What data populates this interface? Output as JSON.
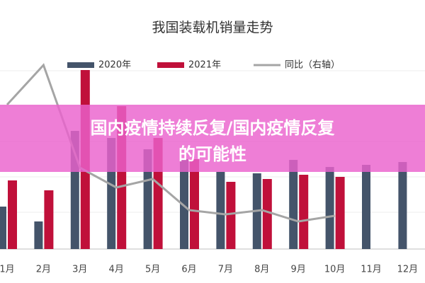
{
  "chart_data": {
    "type": "bar",
    "title": "我国装载机销量走势",
    "categories": [
      "1月",
      "2月",
      "3月",
      "4月",
      "5月",
      "6月",
      "7月",
      "8月",
      "9月",
      "10月",
      "11月",
      "12月"
    ],
    "series": [
      {
        "name": "2020年",
        "color": "#44546a",
        "values": [
          60,
          39,
          167,
          157,
          141,
          127,
          109,
          107,
          126,
          116,
          119,
          123
        ]
      },
      {
        "name": "2021年",
        "color": "#c0103a",
        "values": [
          97,
          83,
          253,
          202,
          157,
          127,
          95,
          99,
          105,
          102,
          null,
          null
        ]
      },
      {
        "name": "同比（右轴）",
        "color": "#a5a5a5",
        "type": "line",
        "axis": "y2",
        "values": [
          204,
          260,
          115,
          87,
          99,
          55,
          49,
          55,
          39,
          47,
          null,
          null
        ]
      }
    ],
    "ylim": [
      0,
      270
    ],
    "y2lim": [
      0,
      270
    ]
  },
  "banner": {
    "lines": [
      "国内疫情持续反复/国内疫情反复",
      "的可能性"
    ]
  }
}
